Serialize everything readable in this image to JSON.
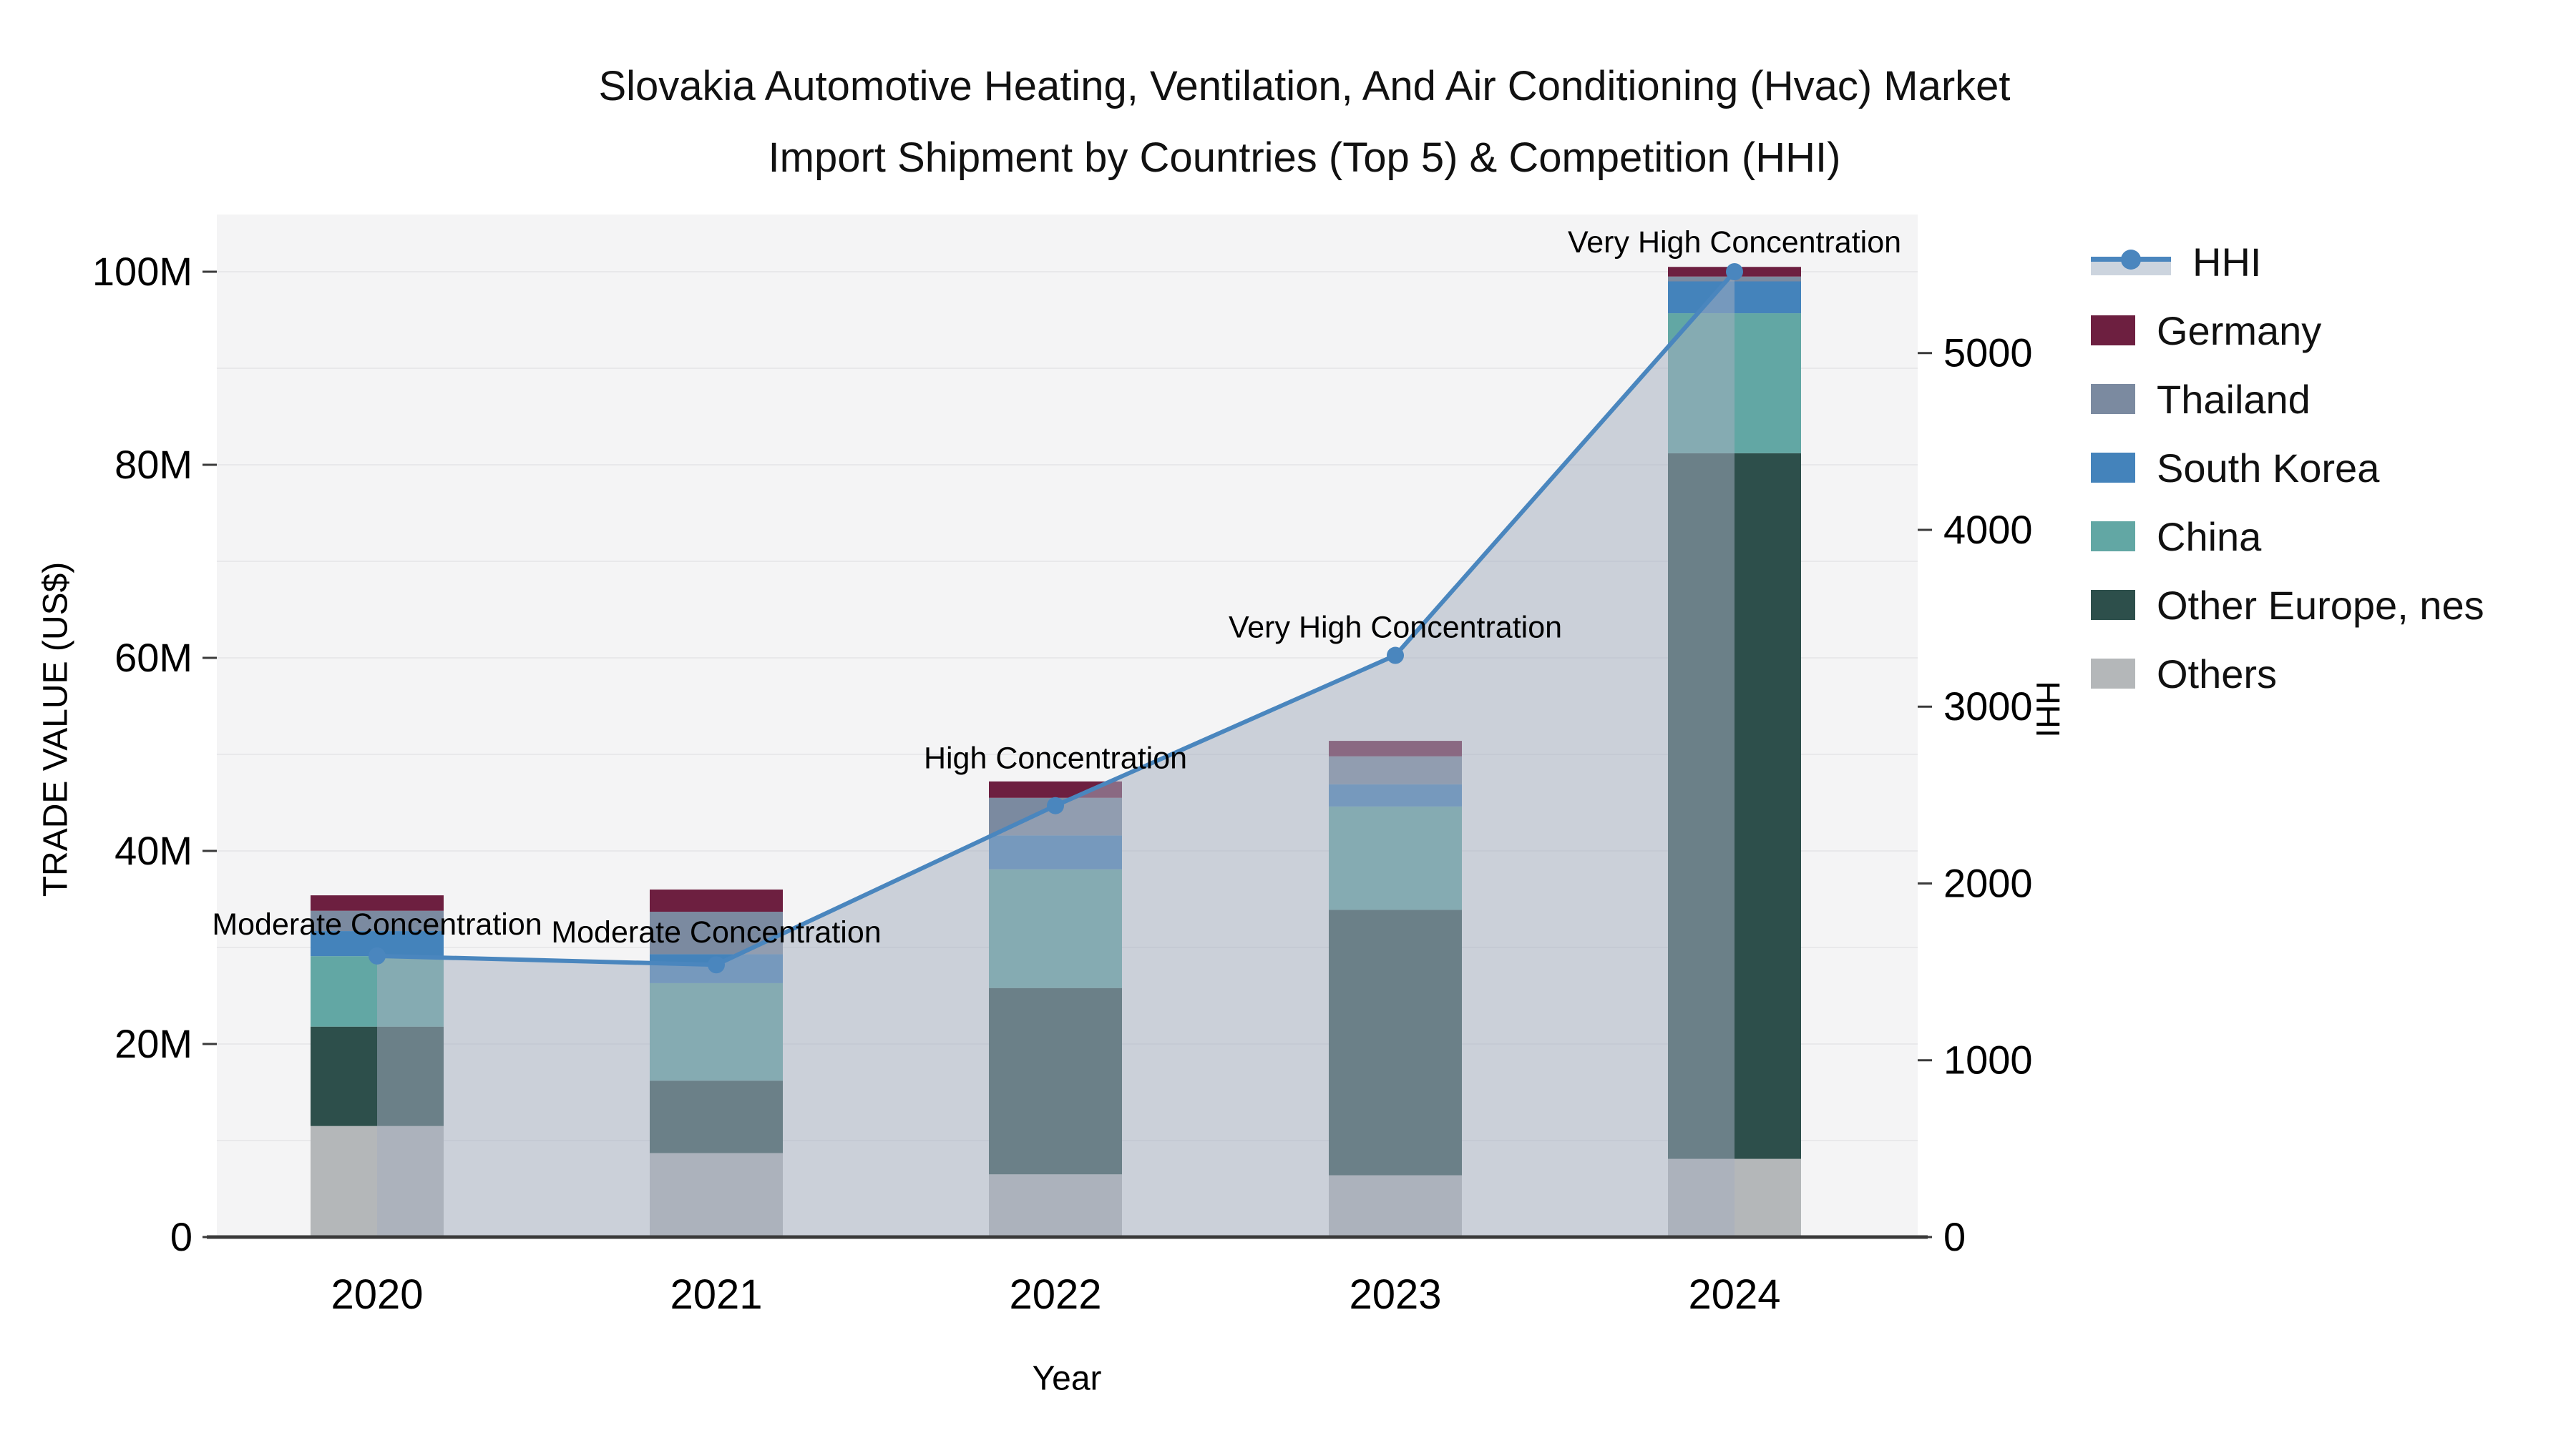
{
  "title": {
    "line1": "Slovakia Automotive Heating, Ventilation, And Air Conditioning (Hvac) Market",
    "line2": "Import Shipment by Countries (Top 5) & Competition (HHI)"
  },
  "axes": {
    "left": {
      "label": "TRADE VALUE (US$)",
      "ticks": [
        "0",
        "20M",
        "40M",
        "60M",
        "80M",
        "100M"
      ]
    },
    "right": {
      "label": "HHI",
      "ticks": [
        "0",
        "1000",
        "2000",
        "3000",
        "4000",
        "5000"
      ]
    },
    "x": {
      "label": "Year",
      "ticks": [
        "2020",
        "2021",
        "2022",
        "2023",
        "2024"
      ]
    }
  },
  "legend": [
    {
      "label": "HHI",
      "type": "line",
      "color": "#4a86be"
    },
    {
      "label": "Germany",
      "type": "box",
      "color": "#6d1f40"
    },
    {
      "label": "Thailand",
      "type": "box",
      "color": "#7b8aa0"
    },
    {
      "label": "South Korea",
      "type": "box",
      "color": "#4483bb"
    },
    {
      "label": "China",
      "type": "box",
      "color": "#62a7a4"
    },
    {
      "label": "Other Europe, nes",
      "type": "box",
      "color": "#2d4f4b"
    },
    {
      "label": "Others",
      "type": "box",
      "color": "#b4b7b9"
    }
  ],
  "chart_data": {
    "type": "bar",
    "subtype": "stacked-bars-with-line-overlay",
    "title": "Slovakia Automotive Heating, Ventilation, And Air Conditioning (Hvac) Market Import Shipment by Countries (Top 5) & Competition (HHI)",
    "xlabel": "Year",
    "ylabel_left": "TRADE VALUE (US$)",
    "ylabel_right": "HHI",
    "categories": [
      "2020",
      "2021",
      "2022",
      "2023",
      "2024"
    ],
    "unit": "million US$",
    "ylim_left": [
      0,
      105
    ],
    "ylim_right": [
      0,
      5500
    ],
    "grid": true,
    "legend_position": "right",
    "series": [
      {
        "name": "Others",
        "color": "#b4b7b9",
        "values": [
          11.5,
          8.7,
          6.5,
          6.4,
          8.1
        ]
      },
      {
        "name": "Other Europe, nes",
        "color": "#2d4f4b",
        "values": [
          10.3,
          7.5,
          19.3,
          27.5,
          73.1
        ]
      },
      {
        "name": "China",
        "color": "#62a7a4",
        "values": [
          7.3,
          10.1,
          12.3,
          10.7,
          14.5
        ]
      },
      {
        "name": "South Korea",
        "color": "#4483bb",
        "values": [
          2.6,
          3.0,
          3.5,
          2.3,
          3.3
        ]
      },
      {
        "name": "Thailand",
        "color": "#7b8aa0",
        "values": [
          2.1,
          4.4,
          3.9,
          2.9,
          0.5
        ]
      },
      {
        "name": "Germany",
        "color": "#6d1f40",
        "values": [
          1.6,
          2.3,
          1.7,
          1.6,
          1.0
        ]
      }
    ],
    "totals": [
      35.4,
      36.0,
      47.2,
      51.4,
      100.5
    ],
    "hhi_line": {
      "name": "HHI",
      "color": "#4a86be",
      "area_fill": "rgba(164,174,192,0.52)",
      "values": [
        1590,
        1540,
        2440,
        3290,
        5460
      ]
    },
    "annotations": [
      {
        "year": "2020",
        "text": "Moderate Concentration"
      },
      {
        "year": "2021",
        "text": "Moderate Concentration"
      },
      {
        "year": "2022",
        "text": "High Concentration"
      },
      {
        "year": "2023",
        "text": "Very High Concentration"
      },
      {
        "year": "2024",
        "text": "Very High Concentration"
      }
    ]
  },
  "colors": {
    "plot_background": "#f4f4f5",
    "gridline": "#e8e8ea",
    "axis_line": "#3a3a3a",
    "hhi_line": "#4a86be",
    "hhi_area": "rgba(164,174,192,0.52)",
    "legend_hhi_band": "#ccd4de",
    "text": "#111111"
  }
}
